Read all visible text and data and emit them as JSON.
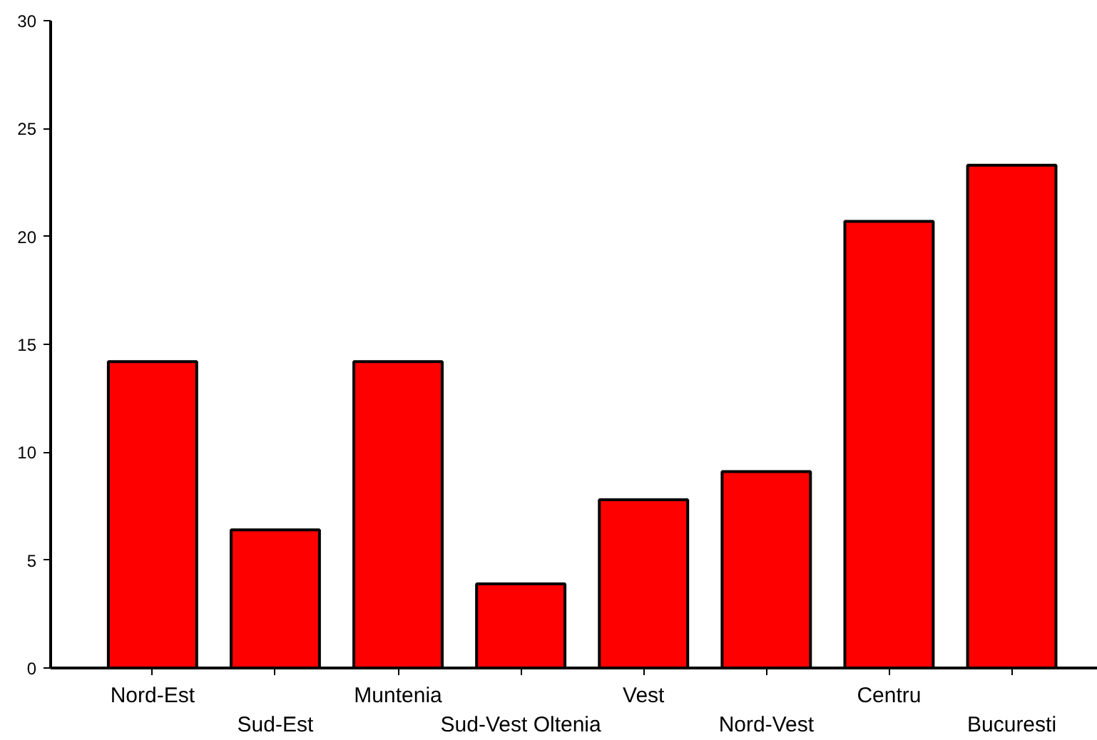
{
  "chart_data": {
    "type": "bar",
    "categories": [
      "Nord-Est",
      "Sud-Est",
      "Muntenia",
      "Sud-Vest Oltenia",
      "Vest",
      "Nord-Vest",
      "Centru",
      "Bucuresti"
    ],
    "values": [
      14.2,
      6.4,
      14.2,
      3.9,
      7.8,
      9.1,
      20.7,
      23.3
    ],
    "color": "#ff0000",
    "ylim": [
      0,
      30
    ],
    "yticks": [
      0,
      5,
      10,
      15,
      20,
      25,
      30
    ],
    "grid": false
  }
}
